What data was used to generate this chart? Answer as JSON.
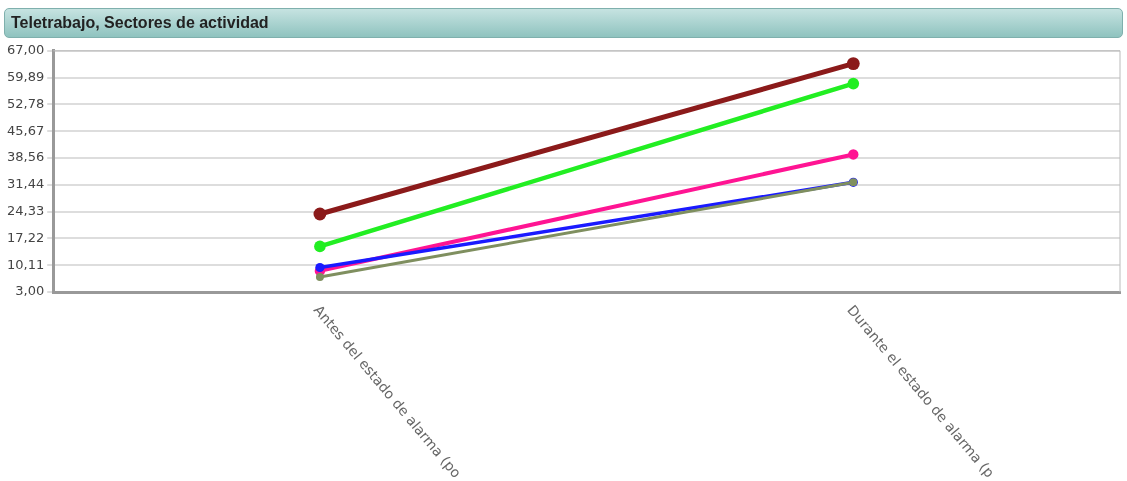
{
  "chart_data": {
    "type": "line",
    "title": "Teletrabajo, Sectores de actividad",
    "categories": [
      "Antes del estado de alarma (po",
      "Durante el estado de alarma (p"
    ],
    "series": [
      {
        "color": "#8b1a1a",
        "values": [
          23.7,
          63.6
        ]
      },
      {
        "color": "#22ee22",
        "values": [
          15.1,
          58.3
        ]
      },
      {
        "color": "#ff1493",
        "values": [
          8.6,
          39.5
        ]
      },
      {
        "color": "#1a1aff",
        "values": [
          9.5,
          32.1
        ]
      },
      {
        "color": "#7f8f5f",
        "values": [
          7.0,
          32.1
        ]
      }
    ],
    "ylim": [
      3,
      67
    ],
    "yticks": [
      {
        "value": 3,
        "label": "3,00"
      },
      {
        "value": 10.11,
        "label": "10,11"
      },
      {
        "value": 17.22,
        "label": "17,22"
      },
      {
        "value": 24.33,
        "label": "24,33"
      },
      {
        "value": 31.44,
        "label": "31,44"
      },
      {
        "value": 38.56,
        "label": "38,56"
      },
      {
        "value": 45.67,
        "label": "45,67"
      },
      {
        "value": 52.78,
        "label": "52,78"
      },
      {
        "value": 59.89,
        "label": "59,89"
      },
      {
        "value": 67,
        "label": "67,00"
      }
    ],
    "grid": "y",
    "marker": "circle",
    "line_style": "solid",
    "legend": false
  }
}
